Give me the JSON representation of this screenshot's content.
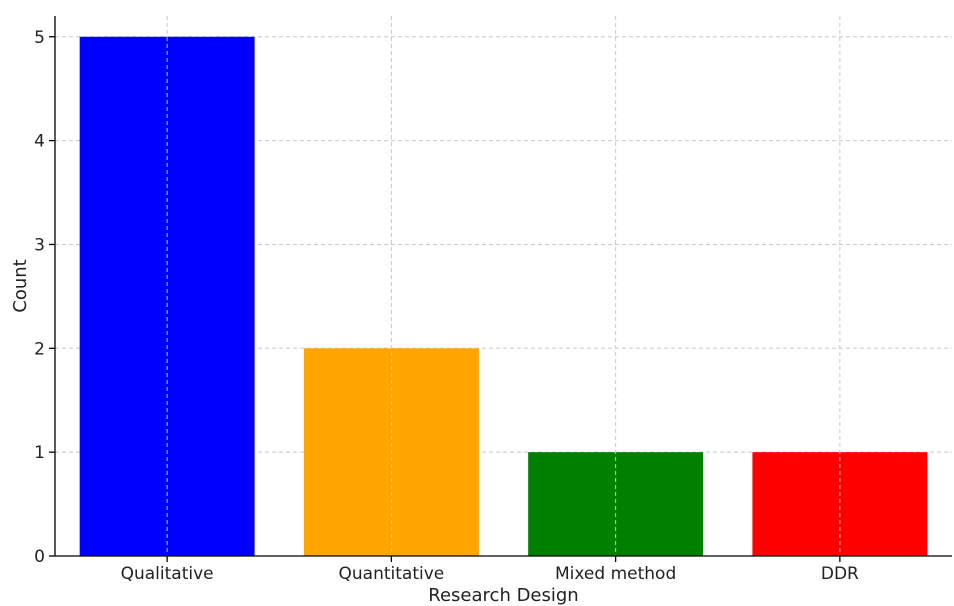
{
  "chart_data": {
    "type": "bar",
    "title": "",
    "xlabel": "Research Design",
    "ylabel": "Count",
    "categories": [
      "Qualitative",
      "Quantitative",
      "Mixed method",
      "DDR"
    ],
    "values": [
      5,
      2,
      1,
      1
    ],
    "colors": [
      "#0000ff",
      "#ffa500",
      "#008000",
      "#ff0000"
    ],
    "ylim": [
      0,
      5.2
    ],
    "yticks": [
      0,
      1,
      2,
      3,
      4,
      5
    ],
    "grid": true,
    "legend": "none"
  }
}
